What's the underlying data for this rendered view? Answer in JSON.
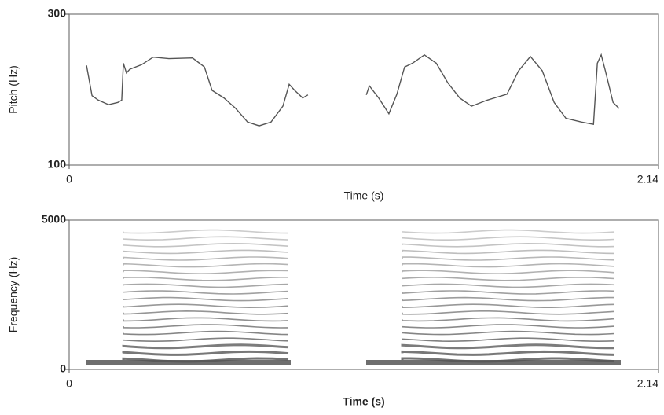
{
  "chart_data": [
    {
      "type": "line",
      "y_label": "Pitch (Hz)",
      "x_label": "Time (s)",
      "xlim": [
        0,
        2.14
      ],
      "xticks": [
        0,
        2.14
      ],
      "ylim": [
        100,
        300
      ],
      "yticks": [
        100,
        300
      ],
      "color": "#555555",
      "x": [
        0.063,
        0.083,
        0.106,
        0.143,
        0.177,
        0.191,
        0.197,
        0.208,
        0.22,
        0.263,
        0.305,
        0.362,
        0.448,
        0.491,
        0.519,
        0.562,
        0.605,
        0.648,
        0.69,
        0.733,
        0.776,
        0.799,
        0.819,
        0.848,
        0.867,
        null,
        1.079,
        1.09,
        1.124,
        1.161,
        1.19,
        1.218,
        1.247,
        1.29,
        1.333,
        1.375,
        1.418,
        1.461,
        1.518,
        1.59,
        1.632,
        1.675,
        1.718,
        1.761,
        1.804,
        1.861,
        1.904,
        1.918,
        1.932,
        1.947,
        1.975,
        1.997
      ],
      "values": [
        232,
        192,
        186,
        180,
        183,
        186,
        235,
        222,
        227,
        233,
        243,
        241,
        242,
        230,
        199,
        189,
        175,
        157,
        152,
        157,
        178,
        207,
        199,
        189,
        193,
        null,
        193,
        205,
        189,
        168,
        194,
        230,
        235,
        246,
        235,
        209,
        189,
        178,
        186,
        194,
        225,
        244,
        225,
        183,
        162,
        157,
        154,
        235,
        246,
        225,
        183,
        175
      ]
    },
    {
      "type": "spectrogram",
      "y_label": "Frequency (Hz)",
      "x_label": "Time (s)",
      "xlim": [
        0,
        2.14
      ],
      "xticks": [
        0,
        2.14
      ],
      "ylim": [
        0,
        5000
      ],
      "yticks": [
        0,
        5000
      ]
    }
  ]
}
